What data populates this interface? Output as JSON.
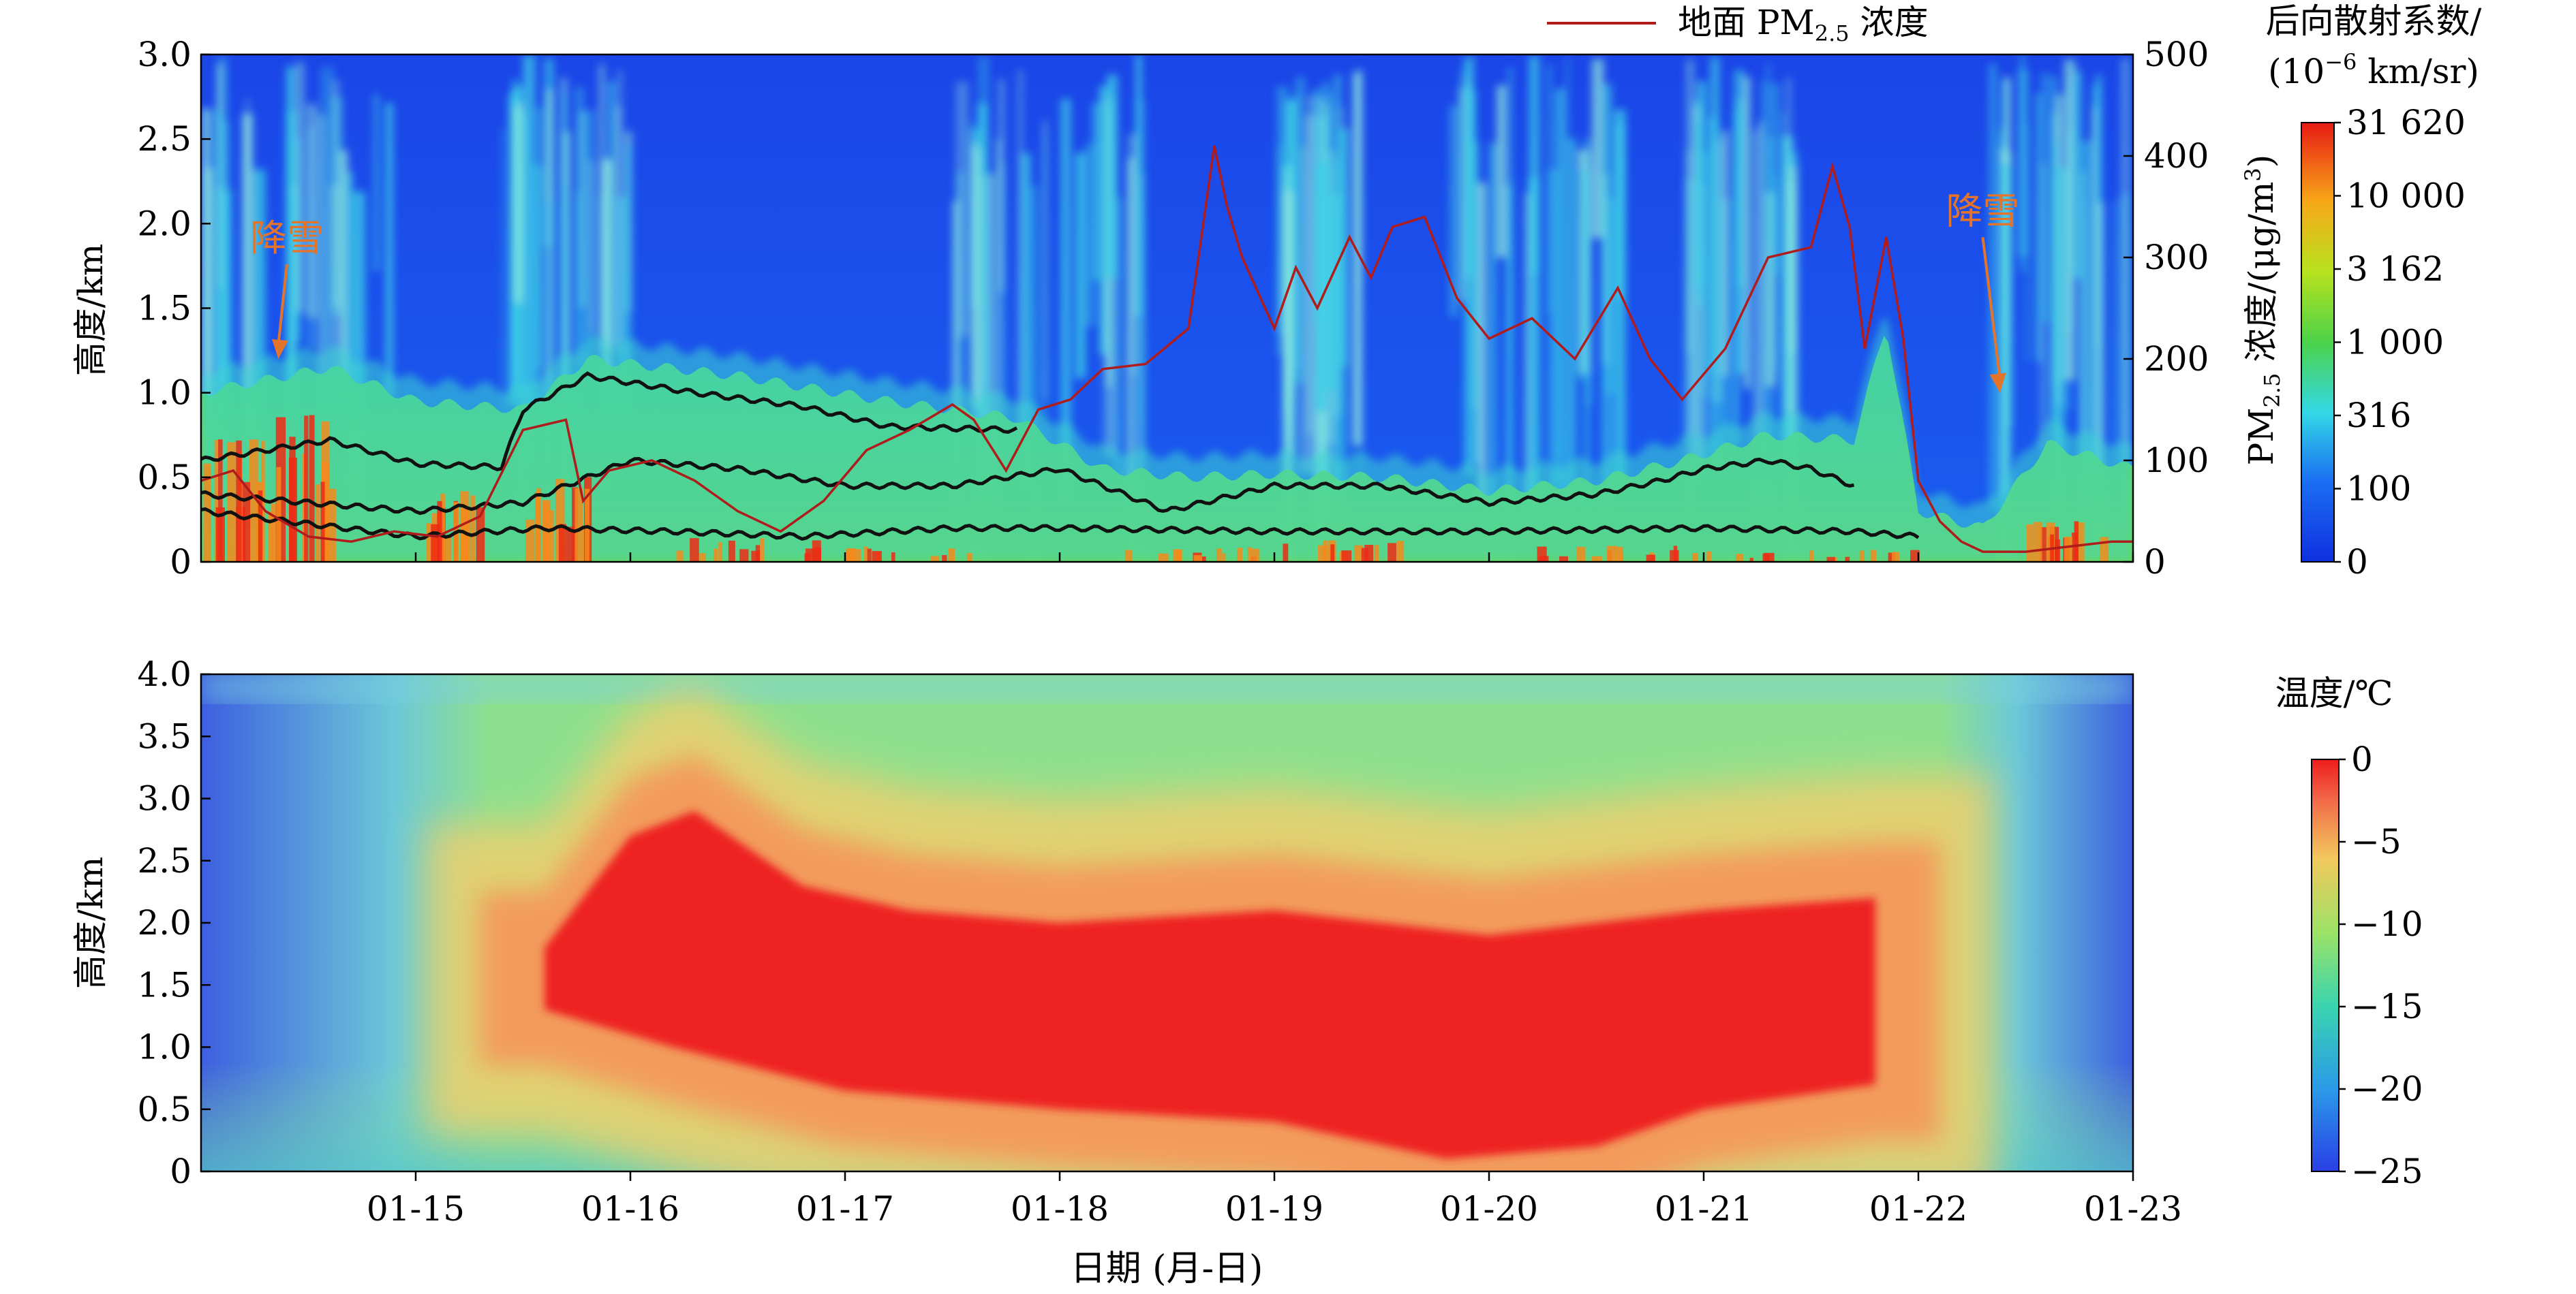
{
  "chart_data": [
    {
      "id": "lidar-panel",
      "type": "heatmap",
      "title": "",
      "xlabel": "",
      "ylabel": "高度/km",
      "y2label": "PM2.5 浓度/(μg/m3)",
      "x_domain_days": [
        14.0,
        23.0
      ],
      "ylim": [
        0,
        3.0
      ],
      "y_ticks": [
        "0",
        "0.5",
        "1.0",
        "1.5",
        "2.0",
        "2.5",
        "3.0"
      ],
      "y2lim": [
        0,
        500
      ],
      "y2_ticks": [
        "0",
        "100",
        "200",
        "300",
        "400",
        "500"
      ],
      "legend": {
        "label": "地面 PM",
        "sub": "2.5",
        "suffix": " 浓度",
        "color": "#b01c1c",
        "position": "top-right"
      },
      "annotations": [
        {
          "text": "降雪",
          "x_day": 14.4,
          "y_km": 1.84,
          "target_day": 14.36,
          "target_km": 1.2,
          "color": "#e4742a"
        },
        {
          "text": "降雪",
          "x_day": 22.3,
          "y_km": 2.0,
          "target_day": 22.38,
          "target_km": 1.0,
          "color": "#e4742a"
        }
      ],
      "colorbar": {
        "title_line1": "后向散射系数/",
        "title_line2_pre": "(10",
        "title_line2_sup": "−6",
        "title_line2_post": " km/sr)",
        "ticks": [
          "0",
          "100",
          "316",
          "1 000",
          "3 162",
          "10 000",
          "31 620"
        ]
      },
      "pm25_series": {
        "name": "地面 PM2.5 浓度",
        "x_day": [
          14.0,
          14.15,
          14.3,
          14.5,
          14.7,
          14.9,
          15.1,
          15.3,
          15.5,
          15.7,
          15.78,
          15.9,
          16.1,
          16.3,
          16.5,
          16.7,
          16.9,
          17.1,
          17.3,
          17.5,
          17.6,
          17.75,
          17.9,
          18.05,
          18.2,
          18.4,
          18.6,
          18.72,
          18.78,
          18.85,
          19.0,
          19.1,
          19.2,
          19.35,
          19.45,
          19.55,
          19.7,
          19.85,
          20.0,
          20.2,
          20.4,
          20.6,
          20.75,
          20.9,
          21.1,
          21.3,
          21.5,
          21.6,
          21.68,
          21.75,
          21.85,
          21.93,
          22.0,
          22.1,
          22.2,
          22.3,
          22.5,
          22.7,
          22.9,
          23.0
        ],
        "values": [
          80,
          90,
          50,
          25,
          20,
          30,
          25,
          45,
          130,
          140,
          60,
          90,
          100,
          80,
          50,
          30,
          60,
          110,
          130,
          155,
          140,
          90,
          150,
          160,
          190,
          195,
          230,
          410,
          350,
          300,
          230,
          290,
          250,
          320,
          280,
          330,
          340,
          260,
          220,
          240,
          200,
          270,
          200,
          160,
          210,
          300,
          310,
          390,
          330,
          210,
          320,
          220,
          80,
          40,
          20,
          10,
          10,
          15,
          20,
          20
        ]
      },
      "layer_top_series": {
        "x_day": [
          14.0,
          14.6,
          15.0,
          15.4,
          15.5,
          15.8,
          16.3,
          16.8,
          17.2,
          17.8
        ],
        "values_km": [
          0.6,
          0.72,
          0.58,
          0.56,
          0.9,
          1.1,
          1.0,
          0.92,
          0.8,
          0.78
        ]
      },
      "layer_mid_series": {
        "x_day": [
          14.0,
          15.0,
          15.5,
          16.0,
          16.5,
          17.0,
          17.5,
          18.0,
          18.5,
          19.0,
          19.5,
          20.0,
          20.5,
          20.8,
          21.0,
          21.3,
          21.5,
          21.7
        ],
        "values_km": [
          0.4,
          0.3,
          0.35,
          0.6,
          0.55,
          0.45,
          0.45,
          0.55,
          0.3,
          0.45,
          0.45,
          0.35,
          0.4,
          0.48,
          0.55,
          0.6,
          0.55,
          0.45
        ]
      },
      "layer_base_series": {
        "x_day": [
          14.0,
          15.0,
          15.6,
          16.2,
          16.8,
          17.5,
          18.0,
          19.0,
          20.0,
          21.0,
          21.7,
          22.0
        ],
        "values_km": [
          0.3,
          0.15,
          0.2,
          0.18,
          0.15,
          0.2,
          0.2,
          0.18,
          0.18,
          0.2,
          0.18,
          0.15
        ]
      }
    },
    {
      "id": "temperature-panel",
      "type": "heatmap",
      "title": "",
      "xlabel": "日期 (月-日)",
      "ylabel": "高度/km",
      "x_domain_days": [
        14.0,
        23.0
      ],
      "x_tick_days": [
        15,
        16,
        17,
        18,
        19,
        20,
        21,
        22,
        23
      ],
      "x_ticks": [
        "01-15",
        "01-16",
        "01-17",
        "01-18",
        "01-19",
        "01-20",
        "01-21",
        "01-22",
        "01-23"
      ],
      "ylim": [
        0,
        4.0
      ],
      "y_ticks": [
        "0",
        "0.5",
        "1.0",
        "1.5",
        "2.0",
        "2.5",
        "3.0",
        "3.5",
        "4.0"
      ],
      "colorbar": {
        "title": "温度/℃",
        "ticks": [
          "−25",
          "−20",
          "−15",
          "−10",
          "−5",
          "0"
        ],
        "range_c": [
          -25,
          0
        ]
      },
      "warm_core_top_km": {
        "x_day": [
          15.6,
          16.0,
          16.3,
          16.8,
          17.3,
          18.0,
          19.0,
          20.0,
          21.0,
          21.8
        ],
        "values_km": [
          1.8,
          2.7,
          2.9,
          2.3,
          2.1,
          2.0,
          2.1,
          1.9,
          2.1,
          2.2
        ]
      },
      "warm_core_bottom_km": {
        "x_day": [
          15.6,
          16.2,
          17.0,
          18.0,
          19.0,
          19.8,
          20.5,
          21.0,
          21.8
        ],
        "values_km": [
          1.3,
          1.0,
          0.65,
          0.5,
          0.4,
          0.1,
          0.2,
          0.5,
          0.7
        ]
      }
    }
  ]
}
